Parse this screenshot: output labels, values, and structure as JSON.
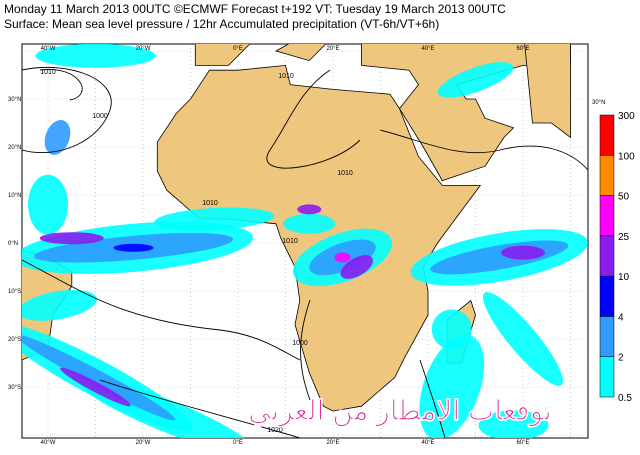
{
  "header": {
    "line1": "Monday 11 March 2013 00UTC ©ECMWF Forecast t+192 VT: Tuesday 19 March 2013 00UTC",
    "line2": "Surface: Mean sea level pressure / 12hr Accumulated precipitation (VT-6h/VT+6h)"
  },
  "map": {
    "lon_labels": [
      "40°W",
      "20°W",
      "0°E",
      "20°E",
      "40°E",
      "60°E"
    ],
    "lat_labels": [
      "30°N",
      "20°N",
      "10°N",
      "0°N",
      "10°S",
      "20°S",
      "30°S"
    ],
    "isobar_labels": [
      "1010",
      "1000",
      "1010",
      "1010",
      "1010",
      "1010",
      "1000",
      "1020"
    ],
    "watermark": "توقعات الامطار من العربي"
  },
  "legend": {
    "levels": [
      0.5,
      2,
      4,
      10,
      25,
      50,
      100,
      300
    ],
    "colors": [
      "#00ffff",
      "#2f9bff",
      "#0000ff",
      "#8a1cf0",
      "#ff00ff",
      "#ff8c00",
      "#ff0000"
    ]
  }
}
